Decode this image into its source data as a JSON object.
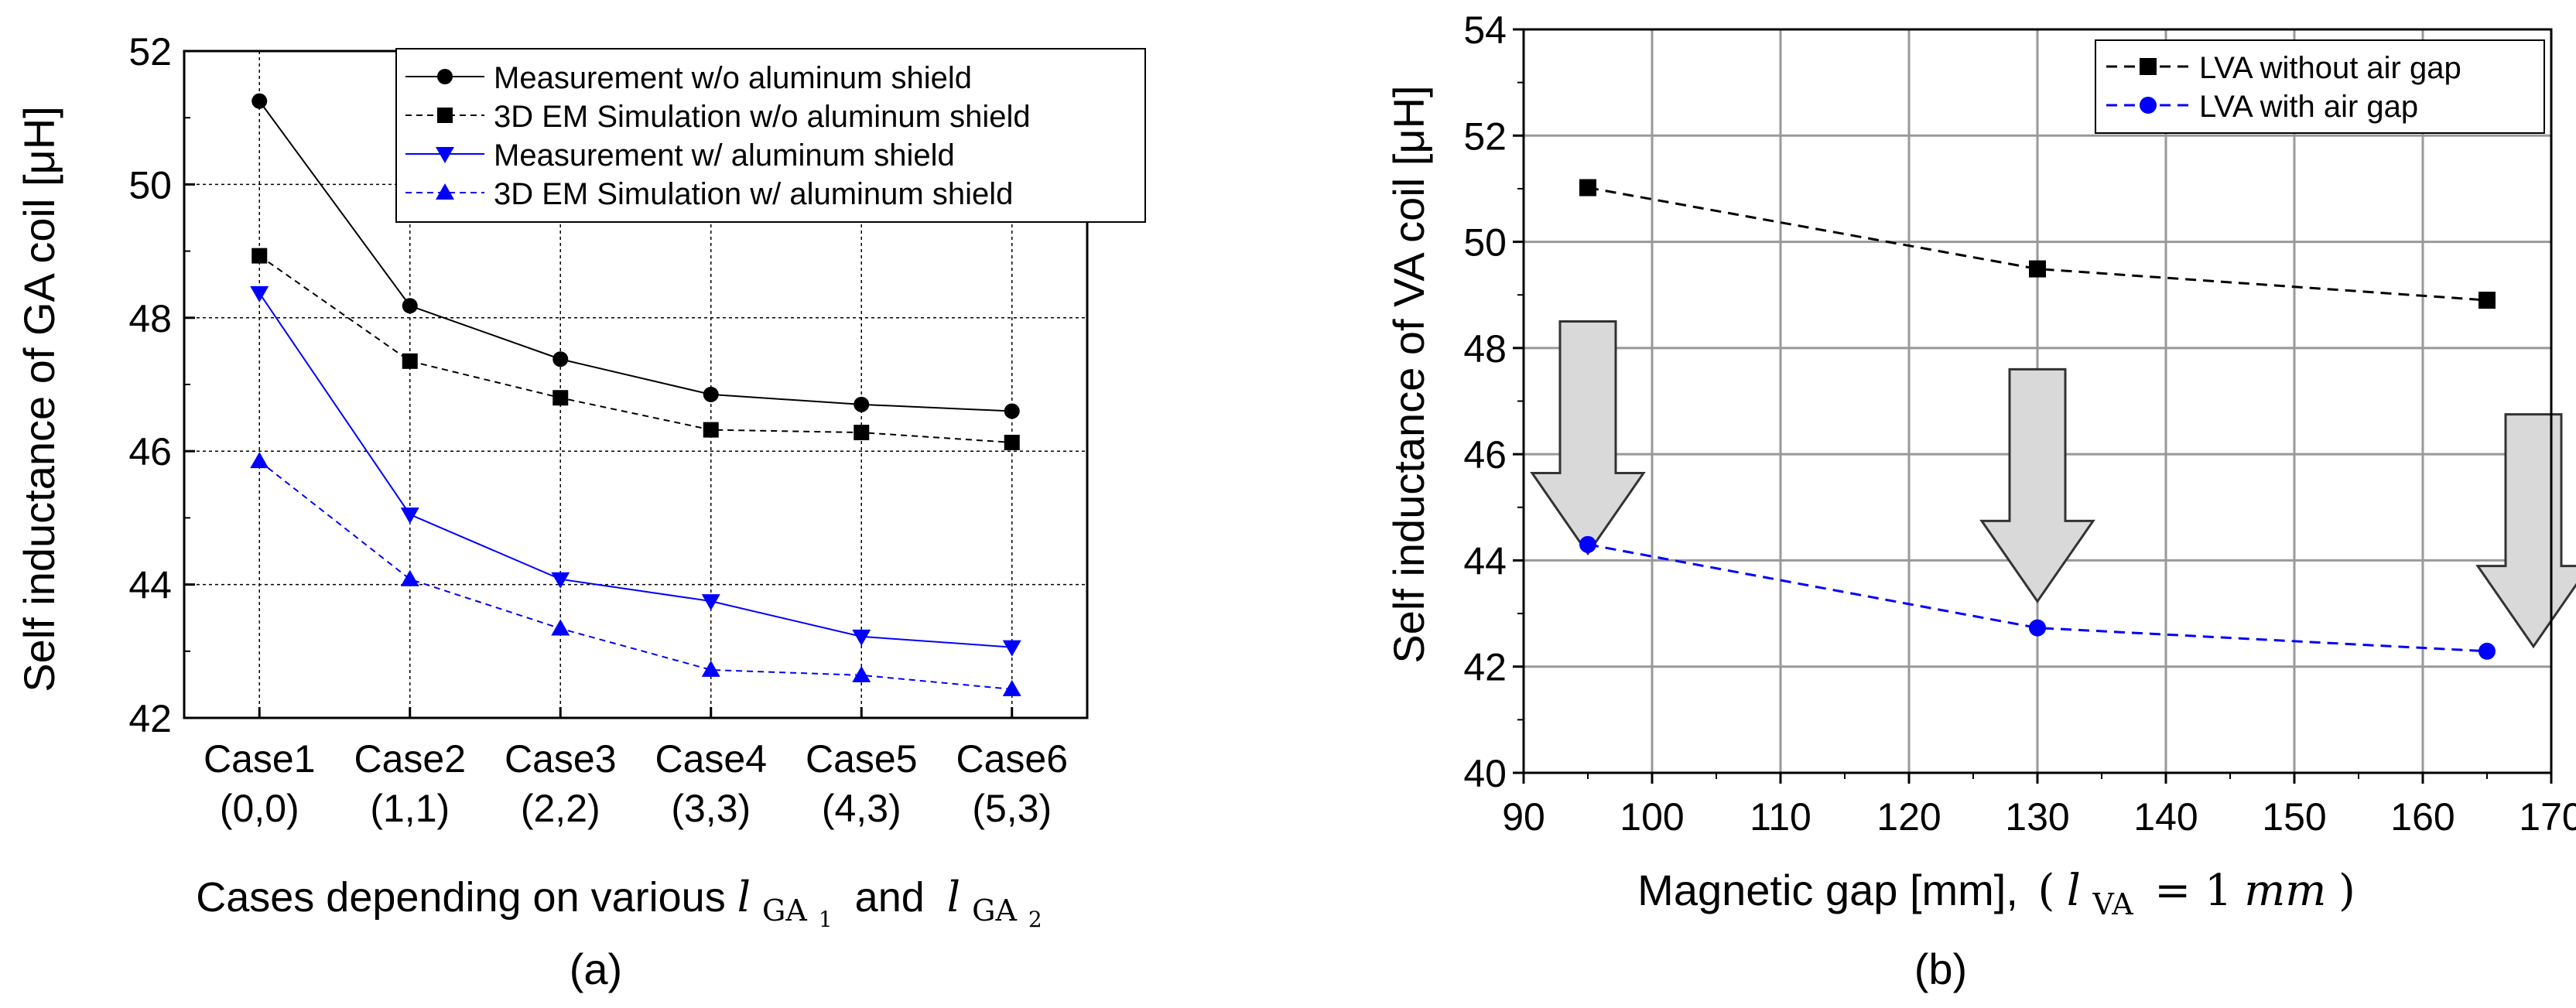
{
  "chart_data": [
    {
      "type": "line",
      "panel_label": "(a)",
      "ylabel": "Self inductance of GA coil [μH]",
      "xlabel": "Cases depending on various l_GA1 and l_GA2",
      "xlabel_main": "Cases depending on various ",
      "xlabel_sym": "l",
      "xlabel_sub1": "GA",
      "xlabel_subsub1": "1",
      "xlabel_and": "and",
      "xlabel_sub2": "GA",
      "xlabel_subsub2": "2",
      "ylim": [
        42,
        52
      ],
      "yticks": [
        "42",
        "44",
        "46",
        "48",
        "50",
        "52"
      ],
      "categories": [
        "Case1",
        "Case2",
        "Case3",
        "Case4",
        "Case5",
        "Case6"
      ],
      "category_sublabels": [
        "(0,0)",
        "(1,1)",
        "(2,2)",
        "(3,3)",
        "(4,3)",
        "(5,3)"
      ],
      "grid": true,
      "legend_position": "top-right",
      "series": [
        {
          "name": "Measurement w/o aluminum shield",
          "color": "#000000",
          "marker": "circle",
          "dash": false,
          "values": [
            51.25,
            48.18,
            47.38,
            46.85,
            46.7,
            46.6
          ]
        },
        {
          "name": "3D EM Simulation w/o aluminum shield",
          "color": "#000000",
          "marker": "square",
          "dash": true,
          "values": [
            48.93,
            47.35,
            46.8,
            46.32,
            46.28,
            46.13
          ]
        },
        {
          "name": "Measurement w/ aluminum shield",
          "color": "#0000ff",
          "marker": "triangle-down",
          "dash": false,
          "values": [
            48.37,
            45.05,
            44.08,
            43.75,
            43.22,
            43.06
          ]
        },
        {
          "name": "3D EM Simulation w/ aluminum shield",
          "color": "#0000ff",
          "marker": "triangle-up",
          "dash": true,
          "values": [
            45.85,
            44.08,
            43.34,
            42.72,
            42.64,
            42.43
          ]
        }
      ]
    },
    {
      "type": "line",
      "panel_label": "(b)",
      "ylabel": "Self inductance of VA coil [μH]",
      "xlabel": "Magnetic gap [mm], (l_VA = 1mm)",
      "xlabel_main": "Magnetic gap [mm],",
      "xlabel_paren_l": "(",
      "xlabel_sym": "l",
      "xlabel_sub": "VA",
      "xlabel_eq": "= 1",
      "xlabel_unit": "mm",
      "xlabel_paren_r": ")",
      "xlim": [
        90,
        170
      ],
      "ylim": [
        40,
        54
      ],
      "xticks": [
        "90",
        "100",
        "110",
        "120",
        "130",
        "140",
        "150",
        "160",
        "170"
      ],
      "yticks": [
        "40",
        "42",
        "44",
        "46",
        "48",
        "50",
        "52",
        "54"
      ],
      "grid": true,
      "legend_position": "top-right",
      "series": [
        {
          "name": "LVA without air gap",
          "color": "#000000",
          "marker": "square",
          "dash": true,
          "x": [
            95,
            130,
            165
          ],
          "y": [
            51.02,
            49.49,
            48.9
          ]
        },
        {
          "name": "LVA with air gap",
          "color": "#0000ff",
          "marker": "circle",
          "dash": true,
          "x": [
            95,
            130,
            165
          ],
          "y": [
            44.3,
            42.73,
            42.29
          ]
        }
      ],
      "annotation": "downward arrows at x = 95, 130 and 165 indicate the inductance drop",
      "arrow_x": [
        95,
        130,
        165
      ]
    }
  ]
}
